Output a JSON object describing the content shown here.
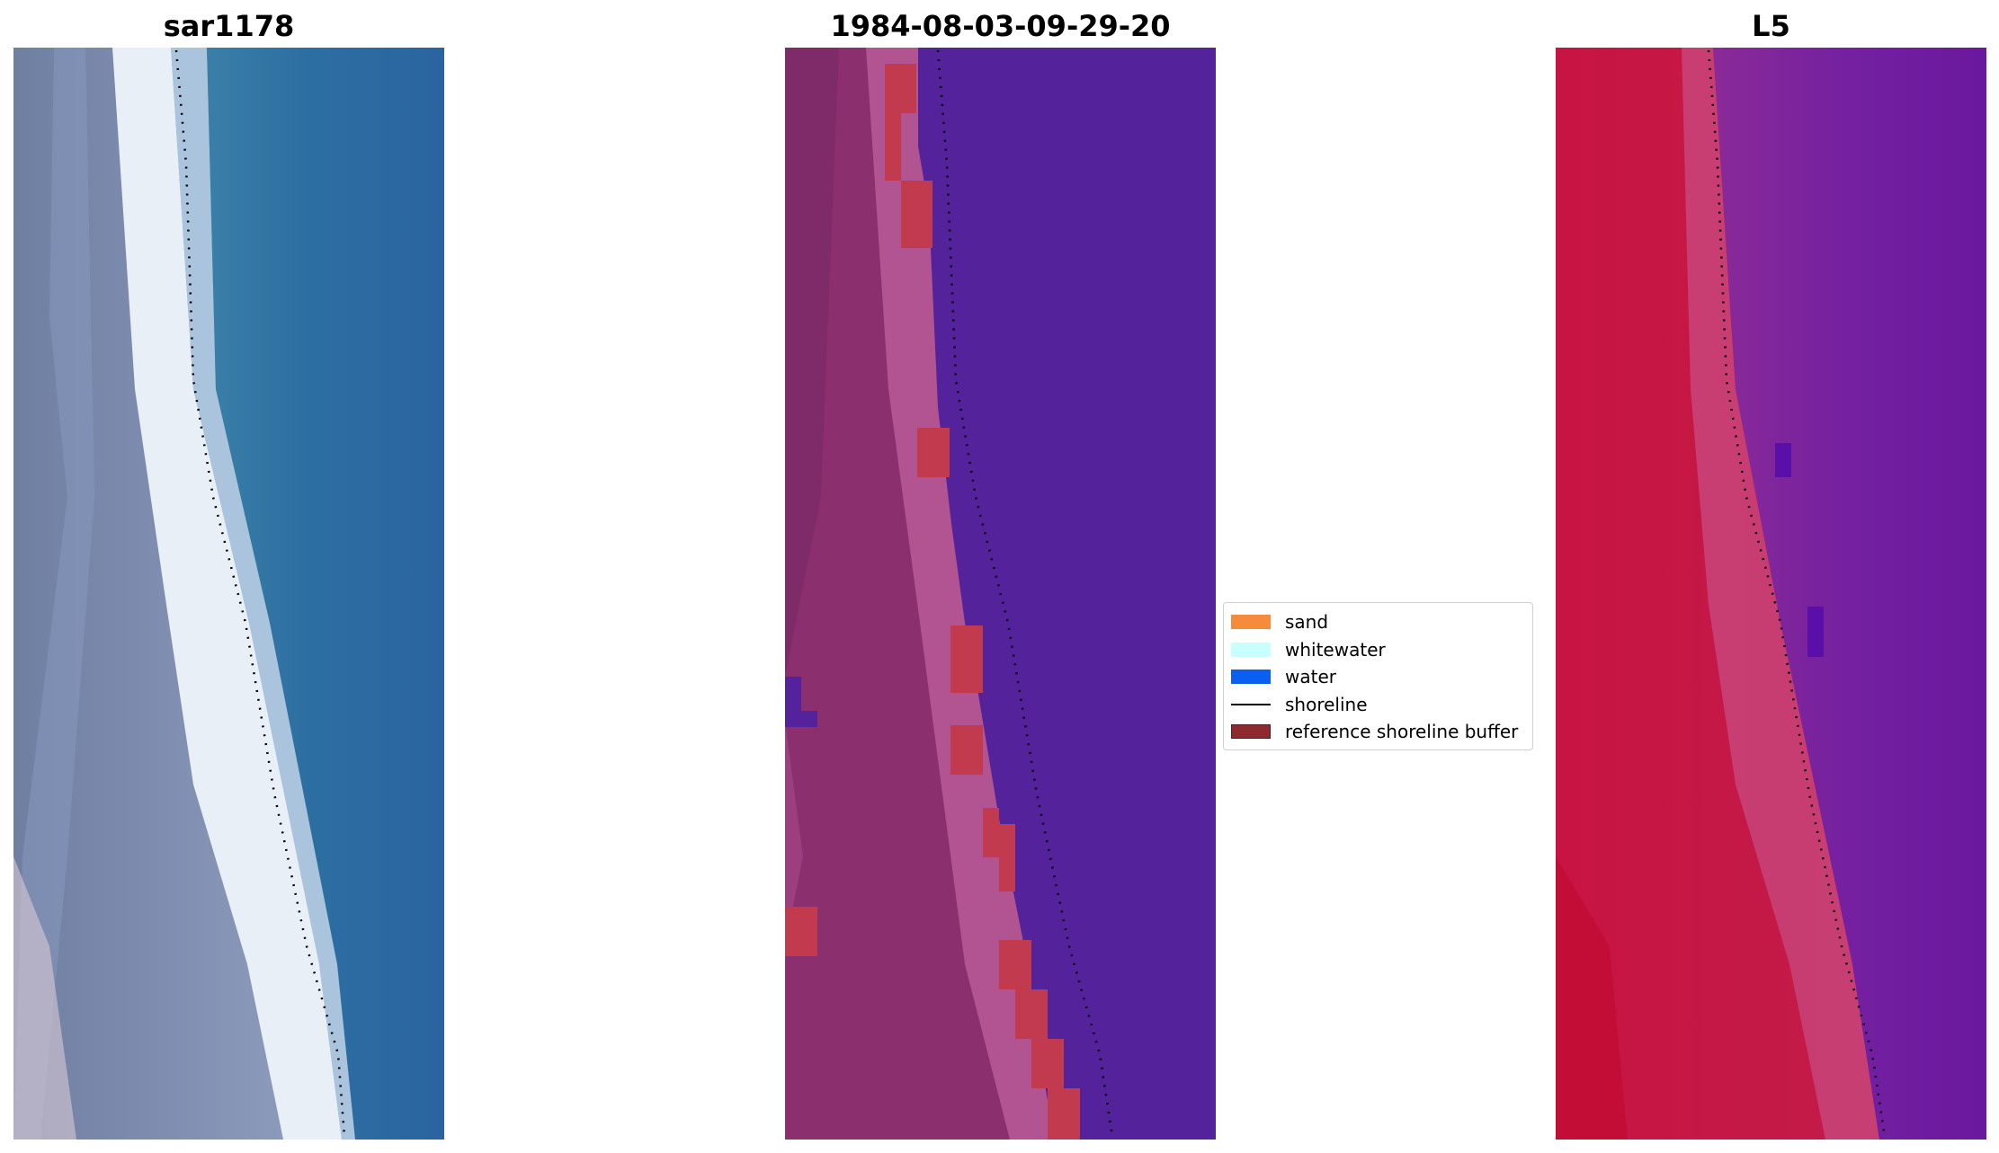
{
  "titles": {
    "rgb": "sar1178",
    "classification": "1984-08-03-09-29-20",
    "ndwi": "L5"
  },
  "legend": [
    {
      "label": "sand",
      "color": "#f68b3c",
      "kind": "patch"
    },
    {
      "label": "whitewater",
      "color": "#c8ffff",
      "kind": "patch"
    },
    {
      "label": "water",
      "color": "#0a5ef0",
      "kind": "patch"
    },
    {
      "label": "shoreline",
      "color": "#000000",
      "kind": "line"
    },
    {
      "label": "reference shoreline buffer",
      "color": "#8c2a30",
      "kind": "patch"
    }
  ],
  "colors": {
    "rgb_water": "#2c68a0",
    "rgb_land": "#7686a8",
    "rgb_whitewater": "#e8eef6",
    "class_land": "#8b2f6f",
    "class_water": "#54229a",
    "class_buffer": "#c23a4e",
    "ndwi_land": "#c4163e",
    "ndwi_water": "#6a1aa0"
  }
}
